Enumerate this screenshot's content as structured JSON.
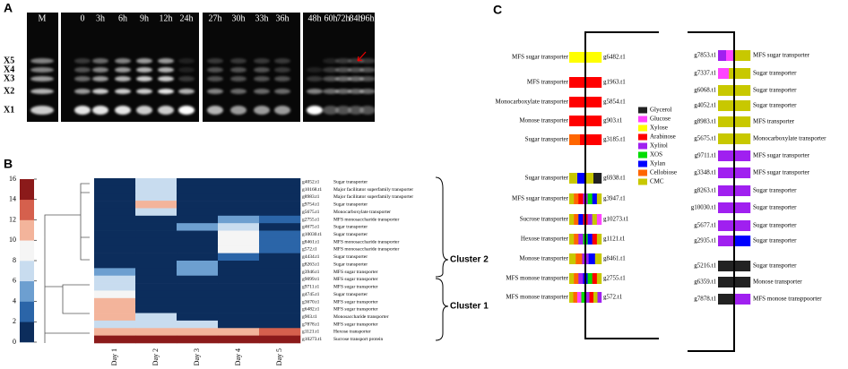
{
  "panel_a": {
    "label": "A",
    "lanes": [
      "M",
      "0",
      "3h",
      "6h",
      "9h",
      "12h",
      "24h",
      "27h",
      "30h",
      "33h",
      "36h",
      "48h",
      "60h",
      "72h",
      "84h",
      "96h"
    ],
    "bands": [
      "X5",
      "X4",
      "X3",
      "X2",
      "X1"
    ]
  },
  "chart_data": {
    "type": "heatmap",
    "panel_label": "B",
    "categories": [
      "Day 1",
      "Day 2",
      "Day 3",
      "Day 4",
      "Day 5"
    ],
    "rows": [
      {
        "gene": "g4052.t1",
        "description": "Sugar transporter"
      },
      {
        "gene": "g10168.t1",
        "description": "Major facilitator superfamily transporter"
      },
      {
        "gene": "g8983.t1",
        "description": "Major facilitator superfamily transporter"
      },
      {
        "gene": "g9754.t1",
        "description": "Sugar transporter"
      },
      {
        "gene": "g5675.t1",
        "description": "Monocarboxylate transporter"
      },
      {
        "gene": "g2755.t1",
        "description": "MFS monosaccharide transporter"
      },
      {
        "gene": "g4675.t1",
        "description": "Sugar transporter"
      },
      {
        "gene": "g10030.t1",
        "description": "Sugar transporter"
      },
      {
        "gene": "g8461.t1",
        "description": "MFS monosaccharide transporter"
      },
      {
        "gene": "g572.t1",
        "description": "MFS monosaccharide transporter"
      },
      {
        "gene": "g4434.t1",
        "description": "Sugar transporter"
      },
      {
        "gene": "g8263.t1",
        "description": "Sugar transporter"
      },
      {
        "gene": "g3946.t1",
        "description": "MFS sugar transporter"
      },
      {
        "gene": "g9099.t1",
        "description": "MFS sugar transporter"
      },
      {
        "gene": "g9711.t1",
        "description": "MFS sugar transporter"
      },
      {
        "gene": "g4745.t1",
        "description": "Sugar transporter"
      },
      {
        "gene": "g3670.t1",
        "description": "MFS sugar transporter"
      },
      {
        "gene": "g6482.t1",
        "description": "MFS sugar transporter"
      },
      {
        "gene": "g903.t1",
        "description": "Monosaccharide transporter"
      },
      {
        "gene": "g7878.t1",
        "description": "MFS sugar transporter"
      },
      {
        "gene": "g1121.t1",
        "description": "Hexose transporter"
      },
      {
        "gene": "g10273.t1",
        "description": "Sucrose transport protein"
      }
    ],
    "values": [
      [
        0,
        6,
        0,
        0,
        0
      ],
      [
        0,
        7,
        0,
        0,
        0
      ],
      [
        0,
        7,
        0,
        0,
        0
      ],
      [
        0,
        10,
        0,
        0,
        0
      ],
      [
        0,
        7,
        0,
        0,
        0
      ],
      [
        0,
        0,
        0,
        5,
        2
      ],
      [
        0,
        0,
        5,
        7,
        0
      ],
      [
        0,
        0,
        0,
        8,
        2
      ],
      [
        0,
        0,
        0,
        8,
        3
      ],
      [
        0,
        0,
        0,
        8,
        3
      ],
      [
        0,
        0,
        0,
        3,
        0
      ],
      [
        0,
        0,
        5,
        0,
        0
      ],
      [
        4,
        0,
        5,
        0,
        0
      ],
      [
        7,
        0,
        0,
        0,
        0
      ],
      [
        7,
        0,
        0,
        0,
        0
      ],
      [
        9,
        0,
        0,
        0,
        0
      ],
      [
        10,
        0,
        0,
        0,
        0
      ],
      [
        10,
        0,
        0,
        0,
        0
      ],
      [
        10,
        6,
        0,
        0,
        0
      ],
      [
        7,
        6,
        6,
        0,
        0
      ],
      [
        10,
        11,
        10,
        10,
        12
      ],
      [
        15,
        15,
        15,
        15,
        15
      ]
    ],
    "clim": [
      0,
      16
    ],
    "cticks": [
      0,
      2,
      4,
      6,
      8,
      10,
      12,
      14,
      16
    ],
    "colors": [
      "#0c2d5c",
      "#2b65a8",
      "#6d9fd0",
      "#c8dcef",
      "#f5f5f5",
      "#f3b49b",
      "#d5604d",
      "#8b1a1a"
    ],
    "clusters": [
      "Cluster 2",
      "Cluster 1"
    ]
  },
  "panel_c": {
    "label": "C",
    "legend": [
      {
        "name": "Glycerol",
        "color": "#222222"
      },
      {
        "name": "Glucose",
        "color": "#ff44ff"
      },
      {
        "name": "Xylose",
        "color": "#ffff00"
      },
      {
        "name": "Arabinose",
        "color": "#ff0000"
      },
      {
        "name": "Xylitol",
        "color": "#a020f0"
      },
      {
        "name": "XOS",
        "color": "#00dd00"
      },
      {
        "name": "Xylan",
        "color": "#0000ff"
      },
      {
        "name": "Cellobiose",
        "color": "#ff6600"
      },
      {
        "name": "CMC",
        "color": "#c8c800"
      }
    ],
    "left": [
      {
        "name": "MFS sugar transporter",
        "id": "g6482.t1",
        "colors": [
          "#ffff00"
        ]
      },
      {
        "name": "MFS transporter",
        "id": "g1963.t1",
        "colors": [
          "#ff0000"
        ]
      },
      {
        "name": "Monocarboxylate transporter",
        "id": "g5854.t1",
        "colors": [
          "#ff0000"
        ]
      },
      {
        "name": "Monose transporter",
        "id": "g903.t1",
        "colors": [
          "#ff0000"
        ]
      },
      {
        "name": "Sugar transporter",
        "id": "g3185.t1",
        "colors": [
          "#ff6600",
          "#ff0000",
          "#ff0000"
        ]
      },
      {
        "name": "Sugar transporter",
        "id": "g6938.t1",
        "colors": [
          "#c8c800",
          "#0000ff",
          "#c8c800",
          "#222222"
        ]
      },
      {
        "name": "MFS sugar transporter",
        "id": "g3947.t1",
        "colors": [
          "#c8c800",
          "#ff6600",
          "#ff0000",
          "#a020f0",
          "#00dd00",
          "#0000ff",
          "#c8c800"
        ]
      },
      {
        "name": "Sucrose transporter",
        "id": "g10273.t1",
        "colors": [
          "#c8c800",
          "#ff6600",
          "#0000ff",
          "#ff0000",
          "#a020f0",
          "#c8c800",
          "#ff44ff"
        ]
      },
      {
        "name": "Hexose transporter",
        "id": "g1121.t1",
        "colors": [
          "#c8c800",
          "#ff6600",
          "#a020f0",
          "#00dd00",
          "#0000ff",
          "#ff0000",
          "#c8c800"
        ]
      },
      {
        "name": "Monose transporter",
        "id": "g8461.t1",
        "colors": [
          "#c8c800",
          "#ff6600",
          "#a020f0",
          "#0000ff",
          "#c8c800"
        ]
      },
      {
        "name": "MFS monose transporter",
        "id": "g2755.t1",
        "colors": [
          "#c8c800",
          "#ff6600",
          "#a020f0",
          "#0000ff",
          "#00dd00",
          "#ff0000",
          "#c8c800"
        ]
      },
      {
        "name": "MFS monose transporter",
        "id": "g572.t1",
        "colors": [
          "#c8c800",
          "#ff6600",
          "#ff44ff",
          "#00dd00",
          "#a020f0",
          "#ff0000",
          "#c8c800",
          "#a020f0"
        ]
      }
    ],
    "right": [
      {
        "id": "g7853.t1",
        "name": "MFS sugar transporter",
        "colors": [
          "#a020f0",
          "#ff44ff",
          "#c8c800",
          "#c8c800"
        ]
      },
      {
        "id": "g7337.t1",
        "name": "Sugar transporter",
        "colors": [
          "#ff44ff",
          "#c8c800",
          "#c8c800"
        ]
      },
      {
        "id": "g6068.t1",
        "name": "Sugar transporter",
        "colors": [
          "#c8c800"
        ]
      },
      {
        "id": "g4052.t1",
        "name": "Sugar transporter",
        "colors": [
          "#c8c800"
        ]
      },
      {
        "id": "g8983.t1",
        "name": "MFS transporter",
        "colors": [
          "#c8c800"
        ]
      },
      {
        "id": "g5675.t1",
        "name": "Monocarboxylate transporter",
        "colors": [
          "#c8c800"
        ]
      },
      {
        "id": "g9711.t1",
        "name": "MFS sugar transporter",
        "colors": [
          "#a020f0"
        ]
      },
      {
        "id": "g3348.t1",
        "name": "MFS sugar transporter",
        "colors": [
          "#a020f0"
        ]
      },
      {
        "id": "g8263.t1",
        "name": "Sugar transporter",
        "colors": [
          "#a020f0"
        ]
      },
      {
        "id": "g10030.t1",
        "name": "Sugar transporter",
        "colors": [
          "#a020f0"
        ]
      },
      {
        "id": "g5677.t1",
        "name": "Sugar transporter",
        "colors": [
          "#a020f0"
        ]
      },
      {
        "id": "g2935.t1",
        "name": "Sugar transporter",
        "colors": [
          "#a020f0",
          "#0000ff"
        ]
      },
      {
        "id": "g5216.t1",
        "name": "Sugar transporter",
        "colors": [
          "#222222"
        ]
      },
      {
        "id": "g6359.t1",
        "name": "Monose transporter",
        "colors": [
          "#222222"
        ]
      },
      {
        "id": "g7878.t1",
        "name": "MFS monose transppoorter",
        "colors": [
          "#222222",
          "#a020f0"
        ]
      }
    ]
  }
}
